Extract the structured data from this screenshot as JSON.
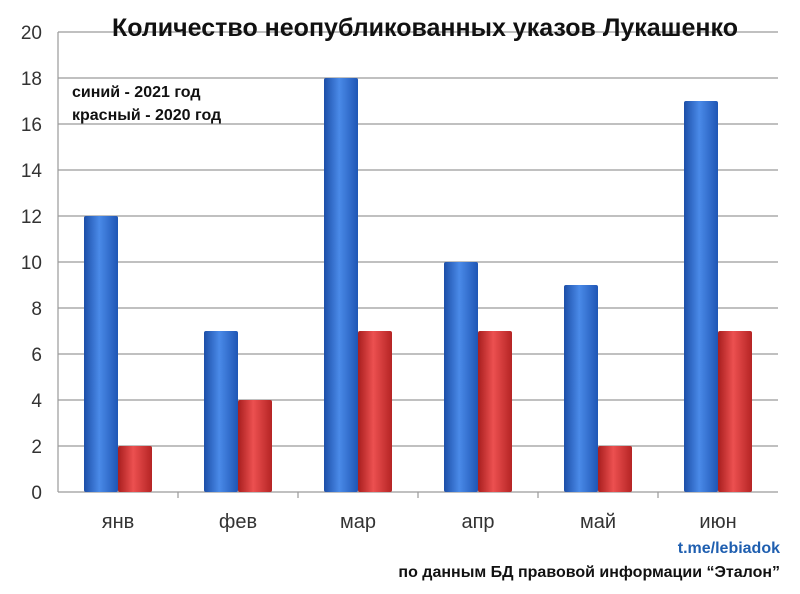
{
  "chart_data": {
    "type": "bar",
    "title": "Количество неопубликованных указов Лукашенко",
    "categories": [
      "янв",
      "фев",
      "мар",
      "апр",
      "май",
      "июн"
    ],
    "series": [
      {
        "values": [
          12,
          7,
          18,
          10,
          9,
          17
        ],
        "color": "#2f6fd0"
      },
      {
        "values": [
          2,
          4,
          7,
          7,
          2,
          7
        ],
        "color": "#d43a3a"
      }
    ],
    "ylim": [
      0,
      20
    ],
    "yticks": [
      0,
      2,
      4,
      6,
      8,
      10,
      12,
      14,
      16,
      18,
      20
    ],
    "grid": true,
    "legend_lines": [
      "синий - 2021 год",
      "красный - 2020 год"
    ],
    "legend_position": "top-left"
  },
  "footer": {
    "link": "t.me/lebiadok",
    "source": "по данным БД правовой информации “Эталон”"
  }
}
